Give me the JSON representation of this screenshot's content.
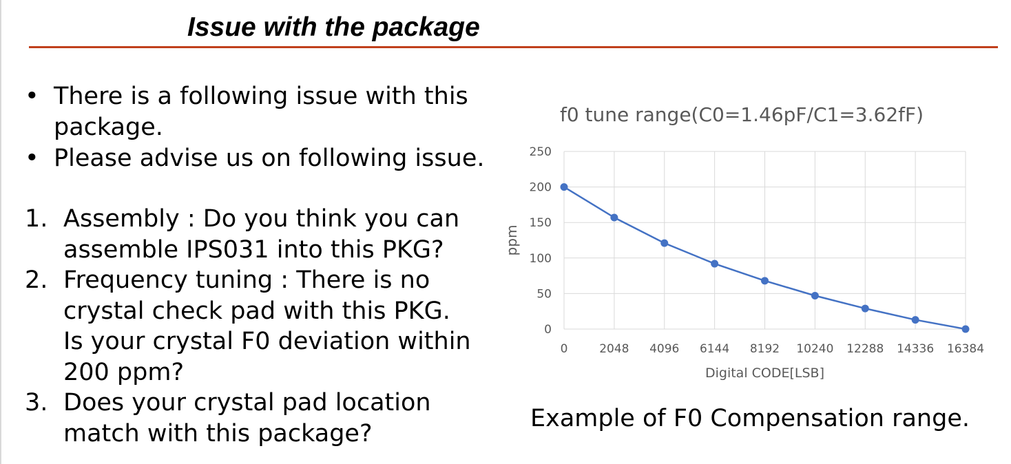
{
  "slide": {
    "title": "Issue with the package",
    "bullets": [
      {
        "marker": "•",
        "lines": [
          "There is a following issue with this",
          "package."
        ]
      },
      {
        "marker": "•",
        "lines": [
          "Please advise us on following issue."
        ]
      }
    ],
    "questions": [
      {
        "number": "1.",
        "lines": [
          "Assembly : Do you think you can",
          "assemble IPS031 into this PKG?"
        ]
      },
      {
        "number": "2.",
        "lines": [
          "Frequency tuning : There is no",
          "crystal check pad with this PKG.",
          "Is your crystal F0 deviation within",
          "200 ppm?"
        ]
      },
      {
        "number": "3.",
        "lines": [
          "Does your crystal pad location",
          "match with this package?"
        ]
      }
    ],
    "caption": "Example of F0 Compensation range."
  },
  "chart_data": {
    "type": "line",
    "title": "f0 tune range(C0=1.46pF/C1=3.62fF)",
    "xlabel": "Digital CODE[LSB]",
    "ylabel": "ppm",
    "categories": [
      "0",
      "2048",
      "4096",
      "6144",
      "8192",
      "10240",
      "12288",
      "14336",
      "16384"
    ],
    "series": [
      {
        "values": [
          200,
          157,
          121,
          92,
          68,
          47,
          29,
          13,
          0
        ]
      }
    ],
    "ylim": [
      0,
      250
    ],
    "yticks": [
      "0",
      "50",
      "100",
      "150",
      "200",
      "250"
    ],
    "grid": true,
    "legend": "none",
    "colors": {
      "line": "#4472c4",
      "grid": "#d9d9d9",
      "text": "#595959"
    }
  }
}
